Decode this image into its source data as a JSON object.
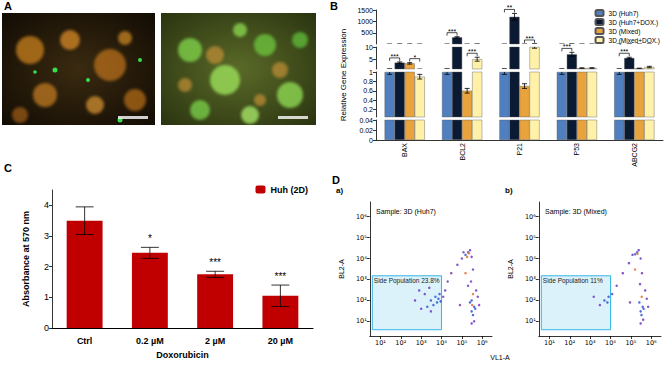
{
  "figure": {
    "panel_a_label": "A",
    "panel_d_xlabel": "VL1-A"
  },
  "chart_data": [
    {
      "panel": "B",
      "type": "bar",
      "ylabel": "Relative Gene Expression",
      "categories": [
        "BAX",
        "BCL2",
        "P21",
        "P53",
        "ABCG2"
      ],
      "series": [
        {
          "name": "3D (Huh7)",
          "color": "#4f7fbf",
          "values": [
            1,
            1,
            1,
            1,
            1
          ],
          "errors": [
            0.05,
            0.05,
            0.05,
            0.05,
            0.05
          ]
        },
        {
          "name": "3D (Huh7+DOX.)",
          "color": "#0b1a33",
          "values": [
            3.6,
            300,
            1200,
            7,
            5.5
          ],
          "errors": [
            0.3,
            30,
            150,
            0.8,
            0.3
          ]
        },
        {
          "name": "3D (Mixed)",
          "color": "#e8a33d",
          "values": [
            3.3,
            0.6,
            0.7,
            1.3,
            1.2
          ],
          "errors": [
            0.3,
            0.05,
            0.05,
            0.2,
            0.15
          ]
        },
        {
          "name": "3D (Mixed+DOX.)",
          "color": "#fff2a8",
          "values": [
            0.9,
            5,
            10,
            1.4,
            1.8
          ],
          "errors": [
            0.05,
            0.8,
            0.5,
            0.1,
            0.3
          ]
        }
      ],
      "y_segments": [
        {
          "ylim": [
            0,
            0.04
          ],
          "yticks": [
            0,
            0.02,
            0.04
          ]
        },
        {
          "ylim": [
            0.04,
            1
          ],
          "yticks": [
            0.2,
            0.4,
            0.6,
            0.8,
            1
          ]
        },
        {
          "ylim": [
            1,
            10
          ],
          "yticks": [
            5,
            10
          ]
        },
        {
          "ylim": [
            10,
            1500
          ],
          "yticks": [
            500,
            1000,
            1500
          ]
        }
      ],
      "grid": false,
      "legend": "top-right",
      "annotations": [
        {
          "category": "BAX",
          "between": [
            "3D (Huh7)",
            "3D (Huh7+DOX.)"
          ],
          "text": "***"
        },
        {
          "category": "BAX",
          "between": [
            "3D (Mixed)",
            "3D (Mixed+DOX.)"
          ],
          "text": "*"
        },
        {
          "category": "BCL2",
          "between": [
            "3D (Huh7)",
            "3D (Huh7+DOX.)"
          ],
          "text": "***"
        },
        {
          "category": "BCL2",
          "between": [
            "3D (Mixed)",
            "3D (Mixed+DOX.)"
          ],
          "text": "***"
        },
        {
          "category": "P21",
          "between": [
            "3D (Huh7)",
            "3D (Huh7+DOX.)"
          ],
          "text": "**"
        },
        {
          "category": "P21",
          "between": [
            "3D (Mixed)",
            "3D (Mixed+DOX.)"
          ],
          "text": "***"
        },
        {
          "category": "P53",
          "between": [
            "3D (Huh7)",
            "3D (Huh7+DOX.)"
          ],
          "text": "***"
        },
        {
          "category": "ABCG2",
          "between": [
            "3D (Huh7)",
            "3D (Huh7+DOX.)"
          ],
          "text": "***"
        }
      ]
    },
    {
      "panel": "C",
      "type": "bar",
      "xlabel": "Doxorubicin",
      "ylabel": "Absorbance at 570 nm",
      "categories": [
        "Ctrl",
        "0.2 µM",
        "2 µM",
        "20 µM"
      ],
      "series": [
        {
          "name": "Huh (2D)",
          "color": "#c00000",
          "values": [
            3.5,
            2.45,
            1.75,
            1.05
          ],
          "errors": [
            0.45,
            0.18,
            0.1,
            0.35
          ]
        }
      ],
      "ylim": [
        0,
        4.5
      ],
      "yticks": [
        0,
        1,
        2,
        3,
        4
      ],
      "grid": false,
      "legend": "top-right",
      "annotations": [
        {
          "category": "0.2 µM",
          "text": "*"
        },
        {
          "category": "2 µM",
          "text": "***"
        },
        {
          "category": "20 µM",
          "text": "***"
        }
      ]
    },
    {
      "panel": "D",
      "sublabel": "a)",
      "type": "scatter",
      "title": "Sample: 3D (Huh7)",
      "ylabel": "BL2-A",
      "log": true,
      "grid": false,
      "xlim": [
        3,
        3000000
      ],
      "xticks": [
        {
          "value": 10,
          "label": "10¹"
        },
        {
          "value": 100,
          "label": "10²"
        },
        {
          "value": 1000,
          "label": "10³"
        },
        {
          "value": 10000,
          "label": "10⁴"
        },
        {
          "value": 100000,
          "label": "10⁵"
        },
        {
          "value": 1000000,
          "label": "10⁶"
        }
      ],
      "ylim": [
        2,
        5000000
      ],
      "yticks": [
        {
          "value": 10,
          "label": "10¹"
        },
        {
          "value": 100,
          "label": "10²"
        },
        {
          "value": 1000,
          "label": "10³"
        },
        {
          "value": 10000,
          "label": "10⁴"
        },
        {
          "value": 100000,
          "label": "10⁵"
        },
        {
          "value": 1000000,
          "label": "10⁶"
        }
      ],
      "gate": {
        "x": [
          4,
          10000
        ],
        "y": [
          4,
          1500
        ],
        "label": "Side Population 23.8%",
        "color": "#35b6e6"
      },
      "series": [
        {
          "color": "#6f3bbf",
          "points": [
            [
              1000,
              40
            ],
            [
              1500,
              200
            ],
            [
              500,
              100
            ],
            [
              800,
              300
            ],
            [
              2500,
              400
            ],
            [
              3000,
              30
            ],
            [
              12000,
              150
            ],
            [
              15000,
              300
            ],
            [
              20000,
              800
            ],
            [
              30000,
              2000
            ],
            [
              60000,
              5000
            ],
            [
              100000,
              10000
            ],
            [
              120000,
              20000
            ],
            [
              250000,
              25000
            ],
            [
              300000,
              12000
            ],
            [
              350000,
              3000
            ],
            [
              280000,
              800
            ],
            [
              500000,
              300
            ],
            [
              600000,
              150
            ],
            [
              400000,
              10
            ],
            [
              300000,
              8
            ],
            [
              200000,
              500
            ],
            [
              700000,
              60
            ],
            [
              80000,
              60
            ]
          ]
        },
        {
          "color": "#2f56d6",
          "points": [
            [
              3000,
              100
            ],
            [
              5000,
              150
            ],
            [
              6000,
              80
            ],
            [
              4000,
              60
            ],
            [
              8000,
              200
            ],
            [
              7000,
              120
            ],
            [
              2000,
              50
            ],
            [
              9000,
              90
            ],
            [
              300000,
              30
            ],
            [
              400000,
              50
            ],
            [
              350000,
              20
            ],
            [
              250000,
              80
            ],
            [
              300000,
              100
            ],
            [
              450000,
              40
            ],
            [
              200000,
              20000
            ],
            [
              150000,
              15000
            ]
          ]
        },
        {
          "color": "#e2713a",
          "points": [
            [
              220000,
              18000
            ],
            [
              180000,
              12000
            ],
            [
              350000,
              200
            ],
            [
              320000,
              60
            ],
            [
              150000,
              2000
            ]
          ]
        }
      ]
    },
    {
      "sublabel": "b)",
      "type": "scatter",
      "title": "Sample: 3D (Mixed)",
      "ylabel": "BL2-A",
      "log": true,
      "grid": false,
      "xlim": [
        3,
        3000000
      ],
      "xticks": [
        {
          "value": 10,
          "label": "10¹"
        },
        {
          "value": 100,
          "label": "10²"
        },
        {
          "value": 1000,
          "label": "10³"
        },
        {
          "value": 10000,
          "label": "10⁴"
        },
        {
          "value": 100000,
          "label": "10⁵"
        },
        {
          "value": 1000000,
          "label": "10⁶"
        }
      ],
      "ylim": [
        2,
        5000000
      ],
      "yticks": [
        {
          "value": 10,
          "label": "10¹"
        },
        {
          "value": 100,
          "label": "10²"
        },
        {
          "value": 1000,
          "label": "10³"
        },
        {
          "value": 10000,
          "label": "10⁴"
        },
        {
          "value": 100000,
          "label": "10⁵"
        },
        {
          "value": 1000000,
          "label": "10⁶"
        }
      ],
      "gate": {
        "x": [
          4,
          10000
        ],
        "y": [
          4,
          1500
        ],
        "label": "Side Population 11%",
        "color": "#35b6e6"
      },
      "series": [
        {
          "color": "#6f3bbf",
          "points": [
            [
              3000,
              60
            ],
            [
              1500,
              150
            ],
            [
              12000,
              200
            ],
            [
              20000,
              500
            ],
            [
              40000,
              2000
            ],
            [
              80000,
              6000
            ],
            [
              120000,
              15000
            ],
            [
              240000,
              25000
            ],
            [
              300000,
              10000
            ],
            [
              350000,
              2000
            ],
            [
              280000,
              600
            ],
            [
              500000,
              300
            ],
            [
              600000,
              120
            ],
            [
              400000,
              12
            ],
            [
              300000,
              8
            ],
            [
              700000,
              50
            ],
            [
              90000,
              80
            ]
          ]
        },
        {
          "color": "#2f56d6",
          "points": [
            [
              5000,
              100
            ],
            [
              7000,
              80
            ],
            [
              8000,
              150
            ],
            [
              300000,
              30
            ],
            [
              380000,
              50
            ],
            [
              330000,
              20
            ],
            [
              260000,
              80
            ],
            [
              200000,
              20000
            ],
            [
              160000,
              16000
            ],
            [
              420000,
              40
            ]
          ]
        },
        {
          "color": "#e2713a",
          "points": [
            [
              210000,
              17000
            ],
            [
              340000,
              150
            ],
            [
              160000,
              3000
            ]
          ]
        }
      ]
    }
  ]
}
